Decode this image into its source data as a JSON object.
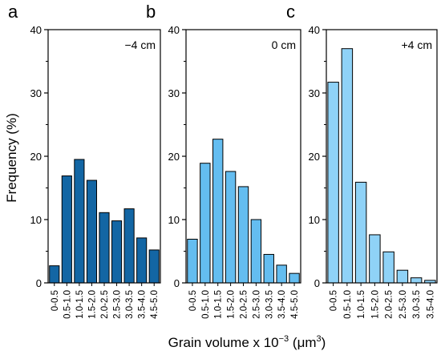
{
  "figure": {
    "ylabel": "Frequency (%)",
    "xlabel_prefix": "Grain volume x 10",
    "xlabel_exp": "−3",
    "xlabel_unit_open": " (",
    "xlabel_unit_mu": "μm",
    "xlabel_unit_exp": "3",
    "xlabel_unit_close": ")"
  },
  "colors": {
    "panel_a": "#1366a4",
    "panel_b": "#64bdf0",
    "panel_c": "#8fd2f7",
    "bar_edge": "#000000"
  },
  "chart_data": [
    {
      "type": "bar",
      "panel": "a",
      "annotation": "−4 cm",
      "categories": [
        "0-0.5",
        "0.5-1.0",
        "1.0-1.5",
        "1.5-2.0",
        "2.0-2.5",
        "2.5-3.0",
        "3.0-3.5",
        "3.5-4.0",
        "4.5-5.0"
      ],
      "values": [
        2.7,
        16.9,
        19.5,
        16.2,
        11.1,
        9.8,
        11.7,
        7.1,
        5.2
      ],
      "ylim": [
        0,
        40
      ],
      "yticks": [
        "0",
        "10",
        "20",
        "30",
        "40"
      ],
      "grid": false
    },
    {
      "type": "bar",
      "panel": "b",
      "annotation": "0 cm",
      "categories": [
        "0-0.5",
        "0.5-1.0",
        "1.0-1.5",
        "1.5-2.0",
        "2.0-2.5",
        "2.5-3.0",
        "3.0-3.5",
        "3.5-4.0",
        "4.5-5.0"
      ],
      "values": [
        6.9,
        18.9,
        22.7,
        17.6,
        15.2,
        10.0,
        4.5,
        2.8,
        1.5
      ],
      "ylim": [
        0,
        40
      ],
      "yticks": [
        "0",
        "10",
        "20",
        "30",
        "40"
      ],
      "grid": false
    },
    {
      "type": "bar",
      "panel": "c",
      "annotation": "+4 cm",
      "categories": [
        "0-0.5",
        "0.5-1.0",
        "1.0-1.5",
        "1.5-2.0",
        "2.0-2.5",
        "2.5-3.0",
        "3.0-3.5",
        "3.5-4.0"
      ],
      "values": [
        31.7,
        37.0,
        15.9,
        7.6,
        4.9,
        2.0,
        0.8,
        0.4
      ],
      "ylim": [
        0,
        40
      ],
      "yticks": [
        "0",
        "10",
        "20",
        "30",
        "40"
      ],
      "grid": false
    }
  ]
}
